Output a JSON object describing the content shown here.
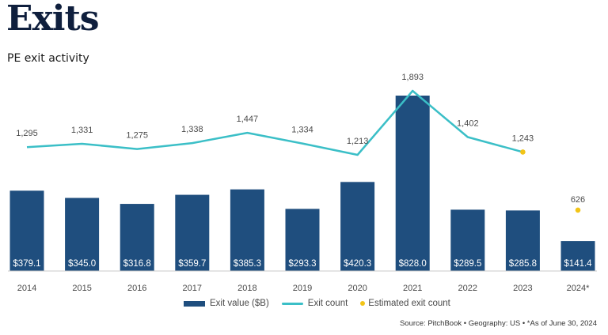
{
  "header": {
    "title": "Exits",
    "subtitle": "PE exit activity"
  },
  "colors": {
    "bar": "#1f4e7e",
    "line": "#3bbfc7",
    "estimate": "#f2c417",
    "title": "#0f1f3d"
  },
  "chart_data": {
    "type": "bar",
    "title": "PE exit activity",
    "xlabel": "",
    "ylabel": "",
    "categories": [
      "2014",
      "2015",
      "2016",
      "2017",
      "2018",
      "2019",
      "2020",
      "2021",
      "2022",
      "2023",
      "2024*"
    ],
    "series": [
      {
        "name": "Exit value ($B)",
        "type": "bar",
        "values": [
          379.1,
          345.0,
          316.8,
          359.7,
          385.3,
          293.3,
          420.3,
          828.0,
          289.5,
          285.8,
          141.4
        ],
        "labels": [
          "$379.1",
          "$345.0",
          "$316.8",
          "$359.7",
          "$385.3",
          "$293.3",
          "$420.3",
          "$828.0",
          "$289.5",
          "$285.8",
          "$141.4"
        ]
      },
      {
        "name": "Exit count",
        "type": "line",
        "values": [
          1295,
          1331,
          1275,
          1338,
          1447,
          1334,
          1213,
          1893,
          1402,
          1243,
          null
        ],
        "labels": [
          "1,295",
          "1,331",
          "1,275",
          "1,338",
          "1,447",
          "1,334",
          "1,213",
          "1,893",
          "1,402",
          "1,243",
          ""
        ]
      },
      {
        "name": "Estimated exit count",
        "type": "scatter",
        "values": [
          null,
          null,
          null,
          null,
          null,
          null,
          null,
          null,
          null,
          1243,
          626
        ],
        "labels": [
          "",
          "",
          "",
          "",
          "",
          "",
          "",
          "",
          "",
          "",
          "626"
        ]
      }
    ],
    "legend": [
      "Exit value ($B)",
      "Exit count",
      "Estimated exit count"
    ],
    "legend_position": "bottom",
    "grid": false
  },
  "legend": {
    "items": [
      {
        "label": "Exit value ($B)"
      },
      {
        "label": "Exit count"
      },
      {
        "label": "Estimated exit count"
      }
    ]
  },
  "footer": {
    "source": "Source: PitchBook  •  Geography: US  •  *As of June 30, 2024"
  }
}
